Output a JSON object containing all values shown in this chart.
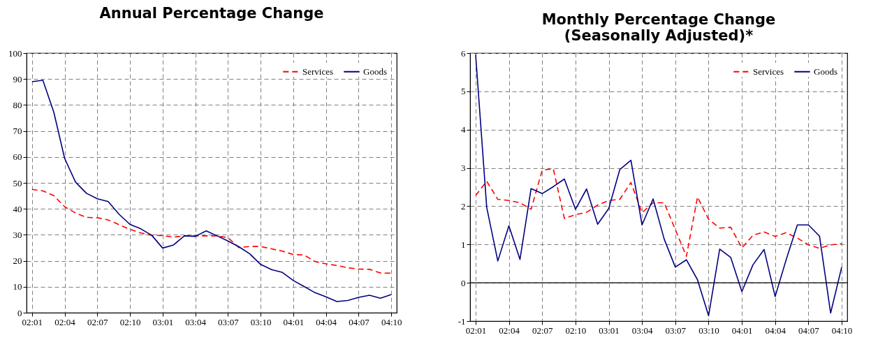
{
  "chart_data": [
    {
      "type": "line",
      "title": "Annual Percentage Change",
      "categories": [
        "02:01",
        null,
        null,
        "02:04",
        null,
        null,
        "02:07",
        null,
        null,
        "02:10",
        null,
        null,
        "03:01",
        null,
        null,
        "03:04",
        null,
        null,
        "03:07",
        null,
        null,
        "03:10",
        null,
        null,
        "04:01",
        null,
        null,
        "04:04",
        null,
        null,
        "04:07",
        null,
        null,
        "04:10"
      ],
      "series": [
        {
          "name": "Services",
          "color": "#ff0000",
          "line_style": "dashed",
          "values": [
            47.5,
            46.9,
            45.1,
            40.8,
            38.4,
            36.7,
            36.6,
            35.7,
            33.9,
            32.1,
            30.7,
            29.8,
            29.7,
            29.1,
            29.6,
            29.6,
            29.6,
            29.6,
            28.9,
            25.1,
            25.5,
            25.5,
            24.6,
            23.7,
            22.4,
            22.2,
            19.7,
            18.8,
            18.2,
            17.3,
            16.8,
            16.7,
            15.3,
            15.2
          ]
        },
        {
          "name": "Goods",
          "color": "#000080",
          "line_style": "solid",
          "values": [
            89,
            89.5,
            77.3,
            59.4,
            50.3,
            46,
            43.9,
            42.8,
            37.9,
            34,
            32.3,
            29.8,
            24.9,
            26.1,
            29.6,
            29.4,
            31.5,
            29.6,
            27.6,
            25.4,
            22.7,
            18.6,
            16.6,
            15.5,
            12.4,
            10.1,
            7.7,
            6.1,
            4.3,
            4.7,
            5.9,
            6.7,
            5.6,
            7
          ]
        }
      ],
      "ylim": [
        0,
        100
      ],
      "yticks": [
        0,
        10,
        20,
        30,
        40,
        50,
        60,
        70,
        80,
        90,
        100
      ],
      "grid": true,
      "legend": "top right",
      "marker": "none"
    },
    {
      "type": "line",
      "title": "Monthly Percentage Change",
      "subtitle": "(Seasonally Adjusted)*",
      "categories": [
        "02:01",
        null,
        null,
        "02:04",
        null,
        null,
        "02:07",
        null,
        null,
        "02:10",
        null,
        null,
        "03:01",
        null,
        null,
        "03:04",
        null,
        null,
        "03:07",
        null,
        null,
        "03:10",
        null,
        null,
        "04:01",
        null,
        null,
        "04:04",
        null,
        null,
        "04:07",
        null,
        null,
        "04:10"
      ],
      "series": [
        {
          "name": "Services",
          "color": "#ff0000",
          "line_style": "dashed",
          "values": [
            2.28,
            2.65,
            2.18,
            2.15,
            2.09,
            1.92,
            2.94,
            2.98,
            1.68,
            1.78,
            1.84,
            2.03,
            2.15,
            2.18,
            2.62,
            1.83,
            2.09,
            2.09,
            1.39,
            0.69,
            2.24,
            1.66,
            1.43,
            1.45,
            0.91,
            1.24,
            1.33,
            1.21,
            1.31,
            1.17,
            0.99,
            0.9,
            0.99,
            1.02
          ]
        },
        {
          "name": "Goods",
          "color": "#000080",
          "line_style": "solid",
          "values": [
            5.96,
            1.97,
            0.57,
            1.49,
            0.61,
            2.46,
            2.33,
            2.51,
            2.71,
            1.92,
            2.45,
            1.53,
            1.94,
            2.96,
            3.2,
            1.51,
            2.19,
            1.14,
            0.41,
            0.6,
            0.08,
            -0.86,
            0.88,
            0.66,
            -0.23,
            0.47,
            0.87,
            -0.36,
            0.61,
            1.51,
            1.51,
            1.22,
            -0.79,
            0.41
          ]
        }
      ],
      "ylim": [
        -1,
        6
      ],
      "yticks": [
        -1,
        0,
        1,
        2,
        3,
        4,
        5,
        6
      ],
      "ref_lines": [
        {
          "axis": "y",
          "value": 0
        }
      ],
      "grid": true,
      "legend": "top right",
      "marker": "none"
    }
  ]
}
